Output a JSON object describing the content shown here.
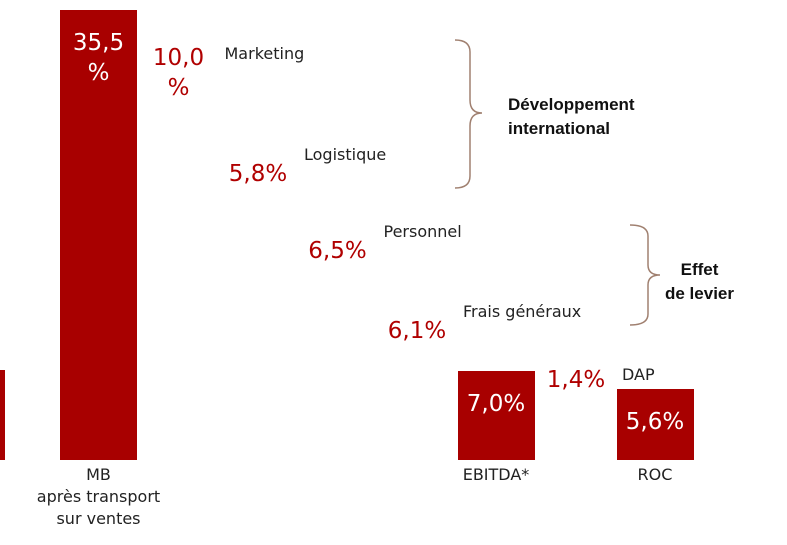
{
  "chart_data": {
    "type": "waterfall",
    "categories": [
      "MB\naprès transport\nsur ventes",
      "Marketing",
      "Logistique",
      "Personnel",
      "Frais généraux",
      "EBITDA*",
      "DAP",
      "ROC"
    ],
    "measures": [
      "total",
      "relative",
      "relative",
      "relative",
      "relative",
      "total",
      "relative",
      "total"
    ],
    "values": [
      35.5,
      10.0,
      5.8,
      6.5,
      6.1,
      7.0,
      1.4,
      5.6
    ],
    "value_labels": [
      "35,5 %",
      "10,0 %",
      "5,8%",
      "6,5%",
      "6,1%",
      "7,0%",
      "1,4%",
      "5,6%"
    ],
    "color": "#a80000",
    "label_color": "#b00000",
    "annotations": [
      "Développement\ninternational",
      "Effet\nde levier"
    ]
  }
}
